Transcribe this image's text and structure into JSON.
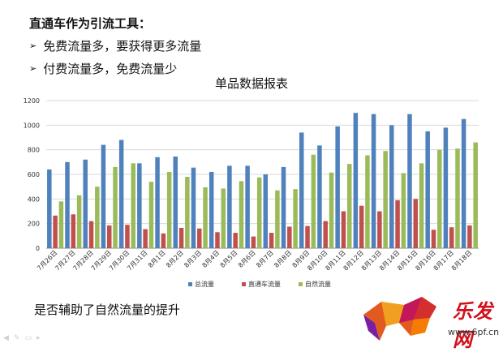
{
  "heading": "直通车作为引流工具：",
  "bullets": [
    "免费流量多，要获得更多流量",
    "付费流量多，免费流量少"
  ],
  "bullet_icon": "arrow-bullet-icon",
  "footer_note": "是否辅助了自然流量的提升",
  "logo": {
    "text": "乐发网",
    "url": "www.6pf.cn"
  },
  "toolbar_icons": [
    "prev-arrow-icon",
    "pen-icon",
    "slide-icon",
    "menu-icon"
  ],
  "chart_data": {
    "type": "bar",
    "title": "单品数据报表",
    "xlabel": "",
    "ylabel": "",
    "ylim": [
      0,
      1200
    ],
    "yticks": [
      "0",
      "200",
      "400",
      "600",
      "800",
      "1000",
      "1200"
    ],
    "grid": true,
    "legend": "bottom",
    "categories": [
      "7月26日",
      "7月27日",
      "7月28日",
      "7月29日",
      "7月30日",
      "7月31日",
      "8月1日",
      "8月2日",
      "8月3日",
      "8月4日",
      "8月5日",
      "8月6日",
      "8月7日",
      "8月8日",
      "8月9日",
      "8月10日",
      "8月11日",
      "8月12日",
      "8月13日",
      "8月14日",
      "8月15日",
      "8月16日",
      "8月17日",
      "8月18日"
    ],
    "series": [
      {
        "name": "总流量",
        "color": "#4f81bd",
        "values": [
          640,
          700,
          720,
          840,
          880,
          690,
          740,
          745,
          655,
          620,
          670,
          670,
          600,
          660,
          940,
          835,
          990,
          1100,
          1090,
          1000,
          1090,
          950,
          980,
          1050
        ]
      },
      {
        "name": "直通车流量",
        "color": "#c0504d",
        "values": [
          265,
          275,
          220,
          185,
          190,
          155,
          120,
          165,
          160,
          130,
          125,
          95,
          125,
          175,
          180,
          220,
          300,
          345,
          300,
          390,
          400,
          150,
          170,
          185
        ]
      },
      {
        "name": "自然流量",
        "color": "#9bbb59",
        "values": [
          380,
          430,
          500,
          660,
          690,
          540,
          620,
          580,
          495,
          485,
          545,
          575,
          470,
          480,
          760,
          615,
          685,
          755,
          790,
          610,
          690,
          800,
          810,
          860
        ]
      }
    ]
  }
}
